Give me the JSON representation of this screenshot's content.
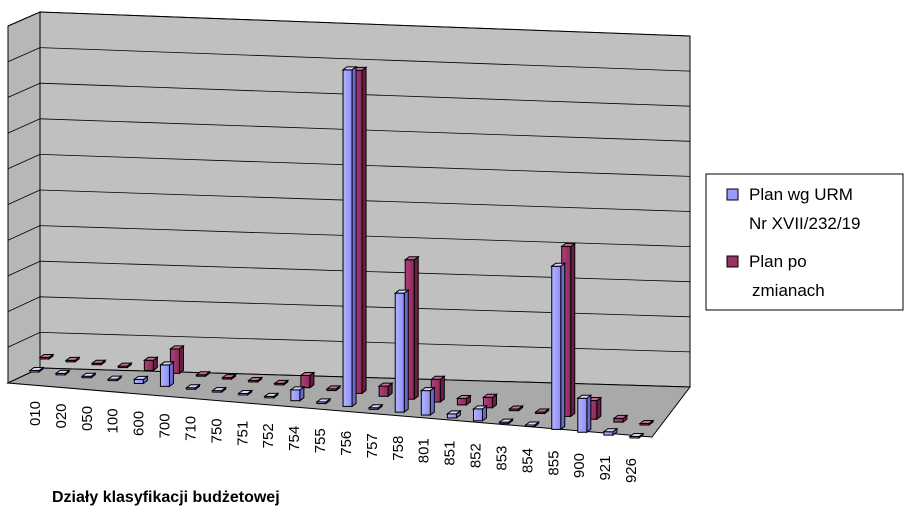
{
  "chart_data": {
    "type": "bar",
    "style": "3d-clustered-column",
    "xlabel": "Działy klasyfikacji budżetowej",
    "ylabel": "",
    "title": "",
    "grid": true,
    "legend_position": "right",
    "ylim": [
      0,
      100
    ],
    "categories": [
      "010",
      "020",
      "050",
      "100",
      "600",
      "700",
      "710",
      "750",
      "751",
      "752",
      "754",
      "755",
      "756",
      "757",
      "758",
      "801",
      "851",
      "852",
      "853",
      "854",
      "855",
      "900",
      "921",
      "926"
    ],
    "series": [
      {
        "name": "Plan wg URM Nr XVII/232/19",
        "color": "#9999ff",
        "values": [
          0.3,
          0.2,
          0.3,
          0.3,
          1.2,
          6.3,
          0.4,
          0.4,
          0.4,
          0.3,
          3.2,
          0.5,
          99,
          0.3,
          35,
          7.2,
          1.2,
          3.5,
          0.3,
          0.3,
          48,
          10,
          1.0,
          0.2
        ]
      },
      {
        "name": "Plan po zmianach",
        "color": "#993366",
        "values": [
          0.3,
          0.2,
          0.3,
          0.3,
          3.0,
          7.2,
          0.4,
          0.4,
          0.4,
          0.3,
          3.6,
          0.5,
          95,
          3.0,
          41,
          6.7,
          1.9,
          3.1,
          0.5,
          0.4,
          50,
          5.5,
          1.1,
          0.2
        ]
      }
    ]
  }
}
